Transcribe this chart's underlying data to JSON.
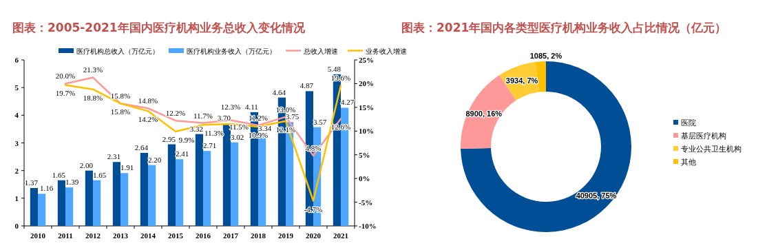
{
  "chart_data": [
    {
      "type": "bar",
      "title": "图表：2005-2021年国内医疗机构业务总收入变化情况",
      "categories": [
        "2010",
        "2011",
        "2012",
        "2013",
        "2014",
        "2015",
        "2016",
        "2017",
        "2018",
        "2019",
        "2020",
        "2021"
      ],
      "series": [
        {
          "name": "医疗机构总收入（万亿元）",
          "type": "bar",
          "color": "#004e96",
          "values": [
            1.37,
            1.65,
            2.0,
            2.31,
            2.64,
            2.95,
            3.32,
            3.7,
            4.11,
            4.64,
            4.87,
            5.48
          ],
          "value_labels": [
            "1.37",
            "1.65",
            "2.00",
            "2.31",
            "2.64",
            "2.95",
            "3.32",
            "3.70",
            "4.11",
            "4.64",
            "4.87",
            "5.48"
          ]
        },
        {
          "name": "医疗机构业务收入（万亿元）",
          "type": "bar",
          "color": "#4da6ff",
          "values": [
            1.16,
            1.39,
            1.65,
            1.91,
            2.2,
            2.41,
            2.71,
            3.02,
            3.34,
            3.75,
            3.57,
            4.27
          ],
          "value_labels": [
            "1.16",
            "1.39",
            "1.65",
            "1.91",
            "2.20",
            "2.41",
            "2.71",
            "3.02",
            "3.34",
            "3.75",
            "3.57",
            "4.27"
          ]
        },
        {
          "name": "总收入增速",
          "type": "line",
          "axis": "y2",
          "color": "#ff9999",
          "values": [
            null,
            20.0,
            21.3,
            15.8,
            14.8,
            12.2,
            11.7,
            12.3,
            11.2,
            13.0,
            4.8,
            12.6
          ],
          "value_labels": [
            null,
            "20.0%",
            "21.3%",
            "15.8%",
            "14.8%",
            "12.2%",
            "11.7%",
            "12.3%",
            "11.2%",
            "13.0%",
            "4.8%",
            "12.6%"
          ]
        },
        {
          "name": "业务收入增速",
          "type": "line",
          "axis": "y2",
          "color": "#ffc000",
          "values": [
            null,
            19.7,
            18.8,
            15.8,
            14.2,
            9.9,
            11.3,
            11.5,
            10.9,
            12.1,
            -4.7,
            19.6
          ],
          "value_labels": [
            null,
            "19.7%",
            "18.8%",
            "15.8%",
            "14.2%",
            "9.9%",
            "11.3%",
            "11.5%",
            "10.9%",
            "12.1%",
            "-4.7%",
            "19.6%"
          ]
        }
      ],
      "ylim": [
        0,
        6
      ],
      "yticks": [
        0,
        1,
        2,
        3,
        4,
        5,
        6
      ],
      "y2lim": [
        -10,
        25
      ],
      "y2ticks": [
        {
          "value": -10,
          "label": "-10%"
        },
        {
          "value": -5,
          "label": "-5%"
        },
        {
          "value": 0,
          "label": "0%"
        },
        {
          "value": 5,
          "label": "5%"
        },
        {
          "value": 10,
          "label": "10%"
        },
        {
          "value": 15,
          "label": "15%"
        },
        {
          "value": 20,
          "label": "20%"
        },
        {
          "value": 25,
          "label": "25%"
        }
      ],
      "legend": "top",
      "grid": false,
      "marker": "none",
      "line_style": "solid"
    },
    {
      "type": "donut",
      "title": "图表：2021年国内各类型医疗机构业务收入占比情况（亿元）",
      "categories": [
        "医院",
        "基层医疗机构",
        "专业公共卫生机构",
        "其他"
      ],
      "values": [
        40905,
        8900,
        3934,
        1085
      ],
      "value_labels": [
        "40905, 75%",
        "8900, 16%",
        "3934, 7%",
        "1085, 2%"
      ],
      "colors": [
        "#004e96",
        "#ff9999",
        "#ffcc33",
        "#ffc000"
      ],
      "legend": "right"
    }
  ]
}
